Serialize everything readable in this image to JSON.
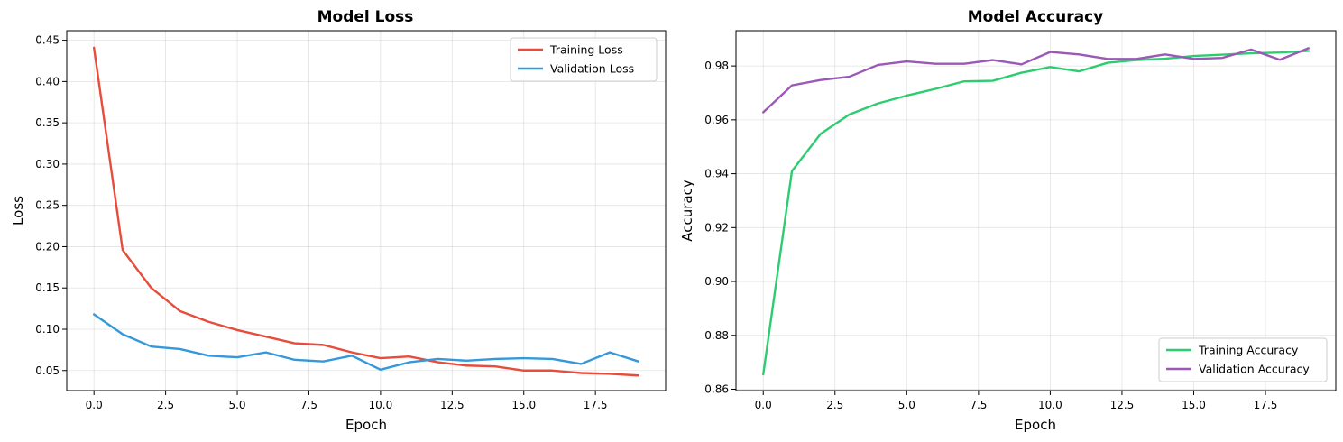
{
  "chart_data": [
    {
      "type": "line",
      "title": "Model Loss",
      "xlabel": "Epoch",
      "ylabel": "Loss",
      "xlim": [
        -0.95,
        19.95
      ],
      "ylim": [
        0.0257,
        0.4616
      ],
      "xticks": [
        0.0,
        2.5,
        5.0,
        7.5,
        10.0,
        12.5,
        15.0,
        17.5
      ],
      "xtick_labels": [
        "0.0",
        "2.5",
        "5.0",
        "7.5",
        "10.0",
        "12.5",
        "15.0",
        "17.5"
      ],
      "yticks": [
        0.05,
        0.1,
        0.15,
        0.2,
        0.25,
        0.3,
        0.35,
        0.4,
        0.45
      ],
      "ytick_labels": [
        "0.05",
        "0.10",
        "0.15",
        "0.20",
        "0.25",
        "0.30",
        "0.35",
        "0.40",
        "0.45"
      ],
      "grid": true,
      "legend_position": "upper-right",
      "x": [
        0,
        1,
        2,
        3,
        4,
        5,
        6,
        7,
        8,
        9,
        10,
        11,
        12,
        13,
        14,
        15,
        16,
        17,
        18,
        19
      ],
      "series": [
        {
          "name": "Training Loss",
          "color": "#e74c3c",
          "values": [
            0.441,
            0.196,
            0.15,
            0.122,
            0.109,
            0.099,
            0.091,
            0.083,
            0.081,
            0.072,
            0.065,
            0.067,
            0.06,
            0.056,
            0.055,
            0.05,
            0.05,
            0.047,
            0.046,
            0.044
          ]
        },
        {
          "name": "Validation Loss",
          "color": "#3498db",
          "values": [
            0.118,
            0.094,
            0.079,
            0.076,
            0.068,
            0.066,
            0.072,
            0.063,
            0.061,
            0.068,
            0.051,
            0.06,
            0.064,
            0.062,
            0.064,
            0.065,
            0.064,
            0.058,
            0.072,
            0.061
          ]
        }
      ]
    },
    {
      "type": "line",
      "title": "Model Accuracy",
      "xlabel": "Epoch",
      "ylabel": "Accuracy",
      "xlim": [
        -0.95,
        19.95
      ],
      "ylim": [
        0.8595,
        0.9931
      ],
      "xticks": [
        0.0,
        2.5,
        5.0,
        7.5,
        10.0,
        12.5,
        15.0,
        17.5
      ],
      "xtick_labels": [
        "0.0",
        "2.5",
        "5.0",
        "7.5",
        "10.0",
        "12.5",
        "15.0",
        "17.5"
      ],
      "yticks": [
        0.86,
        0.88,
        0.9,
        0.92,
        0.94,
        0.96,
        0.98
      ],
      "ytick_labels": [
        "0.86",
        "0.88",
        "0.90",
        "0.92",
        "0.94",
        "0.96",
        "0.98"
      ],
      "grid": true,
      "legend_position": "lower-right",
      "x": [
        0,
        1,
        2,
        3,
        4,
        5,
        6,
        7,
        8,
        9,
        10,
        11,
        12,
        13,
        14,
        15,
        16,
        17,
        18,
        19
      ],
      "series": [
        {
          "name": "Training Accuracy",
          "color": "#2ecc71",
          "values": [
            0.8655,
            0.941,
            0.9548,
            0.962,
            0.9661,
            0.969,
            0.9715,
            0.9743,
            0.9745,
            0.9775,
            0.9796,
            0.978,
            0.9812,
            0.9822,
            0.9827,
            0.9837,
            0.9842,
            0.9847,
            0.985,
            0.9856
          ]
        },
        {
          "name": "Validation Accuracy",
          "color": "#9b59b6",
          "values": [
            0.9628,
            0.9728,
            0.9748,
            0.976,
            0.9804,
            0.9817,
            0.9808,
            0.9808,
            0.9822,
            0.9806,
            0.9852,
            0.9843,
            0.9826,
            0.9826,
            0.9843,
            0.9826,
            0.983,
            0.9861,
            0.9823,
            0.9866
          ]
        }
      ]
    }
  ]
}
